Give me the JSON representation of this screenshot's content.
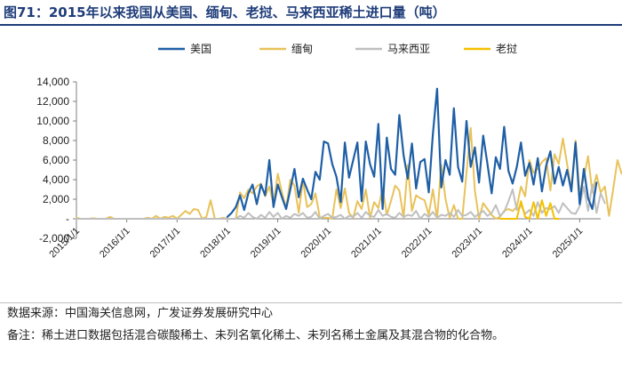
{
  "header": {
    "title": "图71：2015年以来我国从美国、缅甸、老挝、马来西亚稀土进口量（吨）"
  },
  "footer": {
    "source": "数据来源：中国海关信息网，广发证券发展研究中心",
    "note": "备注：稀土进口数据包括混合碳酸稀土、未列名氧化稀土、未列名稀土金属及其混合物的化合物。"
  },
  "chart_data": {
    "type": "line",
    "xlabel": "",
    "ylabel": "",
    "ylim": [
      -2000,
      14000
    ],
    "yticks": [
      -2000,
      0,
      2000,
      4000,
      6000,
      8000,
      10000,
      12000,
      14000
    ],
    "ytick_labels": [
      "-2,000",
      "-",
      "2,000",
      "4,000",
      "6,000",
      "8,000",
      "10,000",
      "12,000",
      "14,000"
    ],
    "x_start": "2015-01",
    "x_end": "2025-06",
    "xtick_labels": [
      "2015/1/1",
      "2016/1/1",
      "2017/1/1",
      "2018/1/1",
      "2019/1/1",
      "2020/1/1",
      "2021/1/1",
      "2022/1/1",
      "2023/1/1",
      "2024/1/1",
      "2025/1/1"
    ],
    "grid": false,
    "legend_position": "top",
    "series": [
      {
        "name": "美国",
        "color": "#1f5fa6",
        "start": "2018-01",
        "values": [
          200,
          600,
          1200,
          2400,
          900,
          2600,
          3500,
          1500,
          3500,
          2400,
          6000,
          1200,
          3500,
          2200,
          1000,
          3000,
          5100,
          2200,
          4100,
          3000,
          2000,
          4800,
          4000,
          7900,
          7700,
          5600,
          4300,
          1700,
          7800,
          4200,
          6000,
          7800,
          1800,
          7900,
          5600,
          4300,
          9700,
          1000,
          8300,
          5100,
          4500,
          10600,
          6500,
          4100,
          7700,
          3100,
          5800,
          6100,
          2700,
          8700,
          13300,
          3200,
          6000,
          4500,
          11300,
          5300,
          3800,
          10000,
          5300,
          7300,
          3700,
          8500,
          5600,
          2600,
          6300,
          5100,
          9400,
          4900,
          3600,
          5300,
          7800,
          4400,
          5700,
          3500,
          6200,
          2800,
          5400,
          6900,
          3600,
          5300,
          3400,
          5000,
          2800,
          7800,
          1500,
          5100,
          2100,
          1000,
          3700
        ]
      },
      {
        "name": "缅甸",
        "color": "#e8c25a",
        "start": "2015-01",
        "values": [
          100,
          0,
          0,
          0,
          50,
          0,
          0,
          0,
          200,
          0,
          0,
          0,
          0,
          0,
          0,
          0,
          0,
          100,
          0,
          300,
          0,
          200,
          100,
          300,
          0,
          400,
          800,
          500,
          1000,
          900,
          0,
          200,
          1900,
          0,
          0,
          100,
          0,
          0,
          0,
          2700,
          2100,
          3000,
          2600,
          3300,
          3600,
          2300,
          3300,
          1500,
          4600,
          2700,
          1100,
          4000,
          3400,
          600,
          4000,
          1200,
          1500,
          2600,
          200,
          100,
          100,
          0,
          3000,
          1100,
          3100,
          600,
          100,
          1800,
          1000,
          3000,
          100,
          1700,
          1100,
          3100,
          400,
          1800,
          3400,
          2900,
          100,
          5500,
          800,
          2400,
          2100,
          1900,
          400,
          3000,
          0,
          5500,
          2000,
          100,
          1400,
          0,
          0,
          4700,
          9300,
          2900,
          0,
          1600,
          1000,
          400,
          0,
          200,
          800,
          1000,
          800,
          1200,
          3300,
          2300,
          6000,
          4700,
          5100,
          5800,
          6200,
          2900,
          6600,
          5600,
          8200,
          5600,
          3000,
          8000,
          2500,
          4200,
          6400,
          2700,
          4500,
          2700,
          3300,
          300,
          3100,
          6000,
          4600
        ]
      },
      {
        "name": "马来西亚",
        "color": "#bfbfbf",
        "start": "2015-01",
        "values": [
          0,
          0,
          0,
          0,
          0,
          0,
          0,
          0,
          0,
          0,
          0,
          0,
          0,
          0,
          0,
          0,
          0,
          0,
          0,
          0,
          0,
          0,
          0,
          0,
          0,
          0,
          0,
          0,
          0,
          0,
          0,
          0,
          0,
          0,
          0,
          0,
          0,
          0,
          0,
          300,
          100,
          600,
          200,
          0,
          400,
          100,
          700,
          200,
          600,
          0,
          300,
          100,
          500,
          300,
          600,
          100,
          200,
          700,
          0,
          300,
          500,
          100,
          200,
          400,
          0,
          300,
          200,
          600,
          100,
          700,
          300,
          200,
          900,
          300,
          500,
          200,
          100,
          600,
          200,
          400,
          300,
          800,
          0,
          500,
          200,
          700,
          100,
          400,
          300,
          600,
          200,
          900,
          300,
          400,
          700,
          200,
          500,
          800,
          300,
          600,
          1400,
          300,
          700,
          1800,
          3000,
          900,
          1400,
          500,
          900,
          300,
          1700,
          600,
          1100,
          1000,
          1300,
          600,
          1600,
          1100,
          600,
          500,
          1300,
          3300,
          800,
          3500,
          600,
          2600,
          1600
        ]
      },
      {
        "name": "老挝",
        "color": "#f5c000",
        "start": "2023-06",
        "values": [
          0,
          0,
          0,
          0,
          0,
          1800,
          200,
          0,
          1700,
          0,
          1900,
          300,
          1600,
          0,
          0
        ]
      }
    ]
  }
}
